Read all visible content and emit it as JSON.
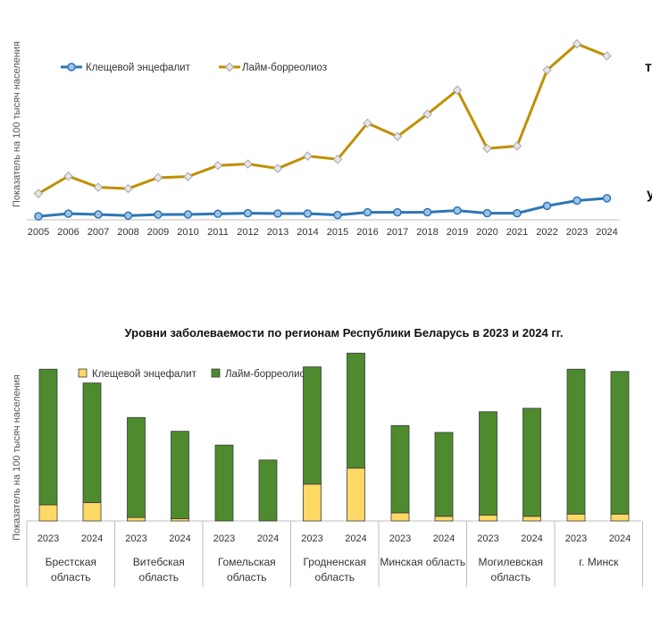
{
  "chart_data": [
    {
      "type": "line",
      "ylabel": "Показатель на 100 тысяч населения",
      "x": [
        "2005",
        "2006",
        "2007",
        "2008",
        "2009",
        "2010",
        "2011",
        "2012",
        "2013",
        "2014",
        "2015",
        "2016",
        "2017",
        "2018",
        "2019",
        "2020",
        "2021",
        "2022",
        "2023",
        "2024"
      ],
      "series": [
        {
          "name": "Клещевой энцефалит",
          "color": "#2e75b6",
          "values": [
            0.5,
            2.3,
            1.8,
            1.0,
            1.7,
            1.8,
            2.2,
            2.6,
            2.4,
            2.4,
            1.4,
            3.2,
            3.2,
            3.3,
            4.4,
            2.6,
            2.6,
            7.5,
            11.0,
            12.6
          ]
        },
        {
          "name": "Лайм-борреолиоз",
          "color": "#bf9000",
          "values": [
            15.7,
            27.3,
            19.9,
            19.0,
            26.3,
            27.0,
            34.4,
            35.4,
            32.4,
            40.7,
            38.5,
            62.6,
            53.7,
            68.6,
            84.6,
            45.7,
            47.4,
            97.9,
            115.4,
            107.4
          ]
        }
      ],
      "ylim": [
        0,
        125
      ],
      "legend": "top-left",
      "edge_labels": [
        "т",
        "у"
      ]
    },
    {
      "type": "bar",
      "title": "Уровни заболеваемости по регионам Республики Беларусь в 2023 и 2024 гг.",
      "ylabel": "Показатель на 100 тысяч населения",
      "stacked": true,
      "legend": "top-left",
      "regions": [
        {
          "name": "Брестская\nобласть",
          "years": [
            "2023",
            "2024"
          ]
        },
        {
          "name": "Витебская\nобласть",
          "years": [
            "2023",
            "2024"
          ]
        },
        {
          "name": "Гомельская\nобласть",
          "years": [
            "2023",
            "2024"
          ]
        },
        {
          "name": "Гродненская\nобласть",
          "years": [
            "2023",
            "2024"
          ]
        },
        {
          "name": "Минская область",
          "years": [
            "2023",
            "2024"
          ]
        },
        {
          "name": "Могилевская\nобласть",
          "years": [
            "2023",
            "2024"
          ]
        },
        {
          "name": "г. Минск",
          "years": [
            "2023",
            "2024"
          ]
        }
      ],
      "series": [
        {
          "name": "Клещевой энцефалит",
          "color": "#ffd966",
          "values": [
            [
              14,
              16
            ],
            [
              3,
              2
            ],
            [
              0,
              0
            ],
            [
              32,
              46
            ],
            [
              7,
              4
            ],
            [
              5,
              4
            ],
            [
              6,
              6
            ]
          ]
        },
        {
          "name": "Лайм-борреолиоз",
          "color": "#4e8a2e",
          "values": [
            [
              118,
              104
            ],
            [
              87,
              76
            ],
            [
              66,
              53
            ],
            [
              102,
              100
            ],
            [
              76,
              73
            ],
            [
              90,
              94
            ],
            [
              126,
              124
            ]
          ]
        }
      ],
      "ylim": [
        0,
        160
      ]
    }
  ]
}
